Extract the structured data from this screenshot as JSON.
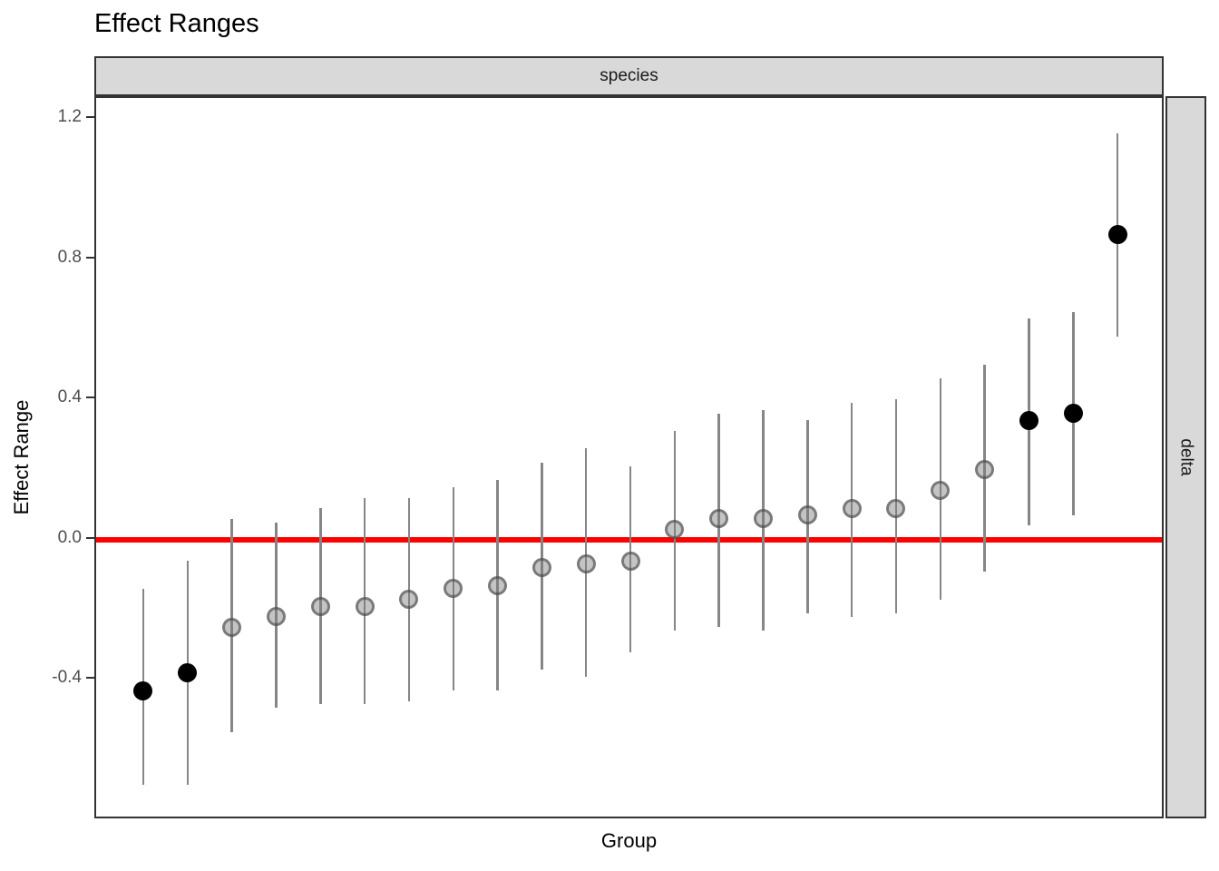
{
  "title": "Effect Ranges",
  "facets": {
    "top_label": "species",
    "right_label": "delta"
  },
  "axes": {
    "x_label": "Group",
    "y_label": "Effect Range"
  },
  "colors": {
    "reference_line": "#FF0000",
    "strip_fill": "#D9D9D9",
    "panel_border": "#333333",
    "error_bar": "#868686",
    "point_significant": "#000000",
    "point_nonsignificant_ring": "#3e3e3e",
    "tick_label": "#4d4d4d"
  },
  "chart_data": {
    "type": "scatter",
    "title": "Effect Ranges",
    "xlabel": "Group",
    "ylabel": "Effect Range",
    "facet_top": "species",
    "facet_right": "delta",
    "ylim": [
      -0.8,
      1.26
    ],
    "y_ticks": [
      1.2,
      0.8,
      0.4,
      0.0,
      -0.4
    ],
    "x_tick_labels": [],
    "grid": "off",
    "reference_line_y": 0.0,
    "n_groups": 23,
    "series": [
      {
        "group": 1,
        "estimate": -0.43,
        "lower": -0.7,
        "upper": -0.14,
        "significant": true
      },
      {
        "group": 2,
        "estimate": -0.38,
        "lower": -0.7,
        "upper": -0.06,
        "significant": true
      },
      {
        "group": 3,
        "estimate": -0.25,
        "lower": -0.55,
        "upper": 0.06,
        "significant": false
      },
      {
        "group": 4,
        "estimate": -0.22,
        "lower": -0.48,
        "upper": 0.05,
        "significant": false
      },
      {
        "group": 5,
        "estimate": -0.19,
        "lower": -0.47,
        "upper": 0.09,
        "significant": false
      },
      {
        "group": 6,
        "estimate": -0.19,
        "lower": -0.47,
        "upper": 0.12,
        "significant": false
      },
      {
        "group": 7,
        "estimate": -0.17,
        "lower": -0.46,
        "upper": 0.12,
        "significant": false
      },
      {
        "group": 8,
        "estimate": -0.14,
        "lower": -0.43,
        "upper": 0.15,
        "significant": false
      },
      {
        "group": 9,
        "estimate": -0.13,
        "lower": -0.43,
        "upper": 0.17,
        "significant": false
      },
      {
        "group": 10,
        "estimate": -0.08,
        "lower": -0.37,
        "upper": 0.22,
        "significant": false
      },
      {
        "group": 11,
        "estimate": -0.07,
        "lower": -0.39,
        "upper": 0.26,
        "significant": false
      },
      {
        "group": 12,
        "estimate": -0.06,
        "lower": -0.32,
        "upper": 0.21,
        "significant": false
      },
      {
        "group": 13,
        "estimate": 0.03,
        "lower": -0.26,
        "upper": 0.31,
        "significant": false
      },
      {
        "group": 14,
        "estimate": 0.06,
        "lower": -0.25,
        "upper": 0.36,
        "significant": false
      },
      {
        "group": 15,
        "estimate": 0.06,
        "lower": -0.26,
        "upper": 0.37,
        "significant": false
      },
      {
        "group": 16,
        "estimate": 0.07,
        "lower": -0.21,
        "upper": 0.34,
        "significant": false
      },
      {
        "group": 17,
        "estimate": 0.09,
        "lower": -0.22,
        "upper": 0.39,
        "significant": false
      },
      {
        "group": 18,
        "estimate": 0.09,
        "lower": -0.21,
        "upper": 0.4,
        "significant": false
      },
      {
        "group": 19,
        "estimate": 0.14,
        "lower": -0.17,
        "upper": 0.46,
        "significant": false
      },
      {
        "group": 20,
        "estimate": 0.2,
        "lower": -0.09,
        "upper": 0.5,
        "significant": false
      },
      {
        "group": 21,
        "estimate": 0.34,
        "lower": 0.04,
        "upper": 0.63,
        "significant": true
      },
      {
        "group": 22,
        "estimate": 0.36,
        "lower": 0.07,
        "upper": 0.65,
        "significant": true
      },
      {
        "group": 23,
        "estimate": 0.87,
        "lower": 0.58,
        "upper": 1.16,
        "significant": true
      }
    ]
  }
}
